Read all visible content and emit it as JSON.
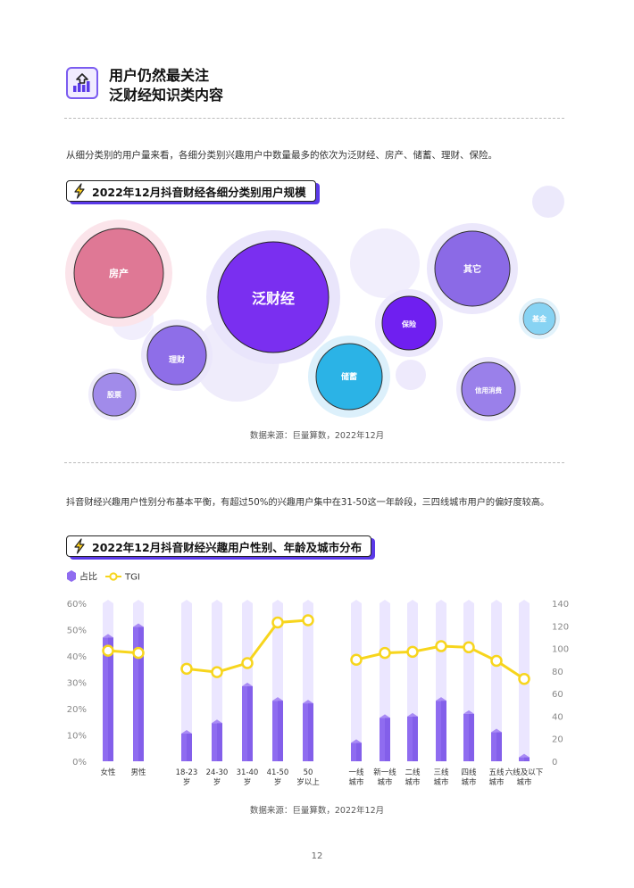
{
  "header": {
    "title_line1": "用户仍然最关注",
    "title_line2": "泛财经知识类内容",
    "icon": "growth-chart-icon"
  },
  "intro1": "从细分类别的用户量来看，各细分类别兴趣用户中数量最多的依次为泛财经、房产、储蓄、理财、保险。",
  "section1": {
    "title": "2022年12月抖音财经各细分类别用户规模",
    "icon": "lightning-icon"
  },
  "bubble_labels": {
    "b0": "房产",
    "b1": "泛财经",
    "b2": "理财",
    "b3": "股票",
    "b4": "储蓄",
    "b5": "保险",
    "b6": "其它",
    "b7": "基金",
    "b8": "信用消费"
  },
  "source1": "数据来源：巨量算数，2022年12月",
  "intro2": "抖音财经兴趣用户性别分布基本平衡，有超过50%的兴趣用户集中在31-50这一年龄段，三四线城市用户的偏好度较高。",
  "section2": {
    "title": "2022年12月抖音财经兴趣用户性别、年龄及城市分布",
    "icon": "lightning-icon"
  },
  "legend": {
    "share": "占比",
    "tgi": "TGI"
  },
  "chart_data": {
    "type": "bar",
    "categories": [
      "女性",
      "男性",
      "18-23岁",
      "24-30岁",
      "31-40岁",
      "41-50岁",
      "50岁以上",
      "一线城市",
      "新一线城市",
      "二线城市",
      "三线城市",
      "四线城市",
      "五线城市",
      "六线及以下城市"
    ],
    "category_lines": [
      [
        "女性"
      ],
      [
        "男性"
      ],
      [
        "18-23",
        "岁"
      ],
      [
        "24-30",
        "岁"
      ],
      [
        "31-40",
        "岁"
      ],
      [
        "41-50",
        "岁"
      ],
      [
        "50",
        "岁以上"
      ],
      [
        "一线",
        "城市"
      ],
      [
        "新一线",
        "城市"
      ],
      [
        "二线",
        "城市"
      ],
      [
        "三线",
        "城市"
      ],
      [
        "四线",
        "城市"
      ],
      [
        "五线",
        "城市"
      ],
      [
        "六线及以下",
        "城市"
      ]
    ],
    "series": [
      {
        "name": "占比",
        "type": "bar",
        "axis": "left",
        "values": [
          47,
          51,
          10.5,
          14.5,
          28.5,
          23,
          22,
          7,
          16.5,
          17,
          23,
          18,
          11,
          1.5
        ]
      },
      {
        "name": "TGI",
        "type": "line",
        "axis": "right",
        "values": [
          98,
          96,
          82,
          79,
          87,
          123,
          125,
          90,
          96,
          97,
          102,
          101,
          89,
          73
        ]
      }
    ],
    "ylim_left": [
      0,
      60
    ],
    "yticks_left": [
      "0%",
      "10%",
      "20%",
      "30%",
      "40%",
      "50%",
      "60%"
    ],
    "ylim_right": [
      0,
      140
    ],
    "yticks_right": [
      "0",
      "20",
      "40",
      "60",
      "80",
      "100",
      "120",
      "140"
    ],
    "colors": {
      "bar": "#8f6cf0",
      "bar_bg": "#ebe6ff",
      "line": "#f7d51d"
    },
    "legend_position": "top-left",
    "grid": false
  },
  "source2": "数据来源：巨量算数，2022年12月",
  "page_number": "12"
}
